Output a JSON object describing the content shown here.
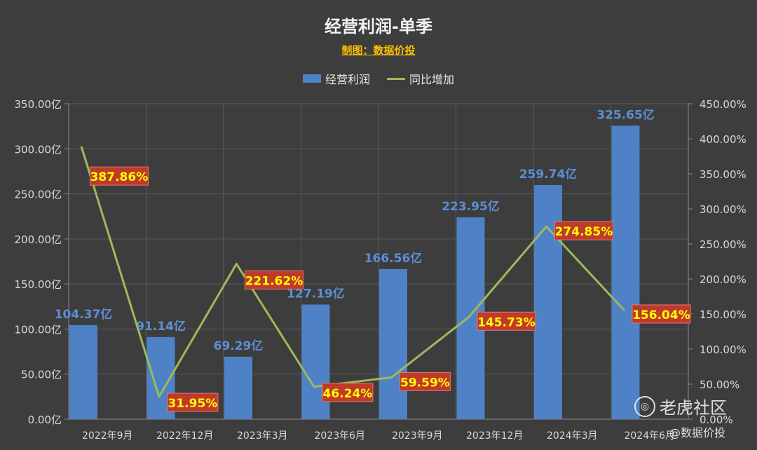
{
  "chart_data": {
    "type": "bar",
    "title": "经营利润-单季",
    "subtitle": "制图：数据价投",
    "categories": [
      "2022年9月",
      "2022年12月",
      "2023年3月",
      "2023年6月",
      "2023年9月",
      "2023年12月",
      "2024年3月",
      "2024年6月"
    ],
    "series": [
      {
        "name": "经营利润",
        "type": "bar",
        "axis": "left",
        "color": "#4f81c6",
        "values": [
          104.37,
          91.14,
          69.29,
          127.19,
          166.56,
          223.95,
          259.74,
          325.65
        ],
        "labels": [
          "104.37亿",
          "91.14亿",
          "69.29亿",
          "127.19亿",
          "166.56亿",
          "223.95亿",
          "259.74亿",
          "325.65亿"
        ]
      },
      {
        "name": "同比增加",
        "type": "line",
        "axis": "right",
        "color": "#9bbb59",
        "values": [
          387.86,
          31.95,
          221.62,
          46.24,
          59.59,
          145.73,
          274.85,
          156.04
        ],
        "labels": [
          "387.86%",
          "31.95%",
          "221.62%",
          "46.24%",
          "59.59%",
          "145.73%",
          "274.85%",
          "156.04%"
        ]
      }
    ],
    "y_left": {
      "ylim": [
        0,
        350
      ],
      "ticks": [
        "0.00亿",
        "50.00亿",
        "100.00亿",
        "150.00亿",
        "200.00亿",
        "250.00亿",
        "300.00亿",
        "350.00亿"
      ]
    },
    "y_right": {
      "ylim": [
        0,
        450
      ],
      "ticks": [
        "0.00%",
        "50.00%",
        "100.00%",
        "150.00%",
        "200.00%",
        "250.00%",
        "300.00%",
        "350.00%",
        "400.00%",
        "450.00%"
      ]
    },
    "grid": true,
    "legend_position": "top"
  },
  "watermark": {
    "main": "老虎社区",
    "sub": "@数据价投"
  }
}
